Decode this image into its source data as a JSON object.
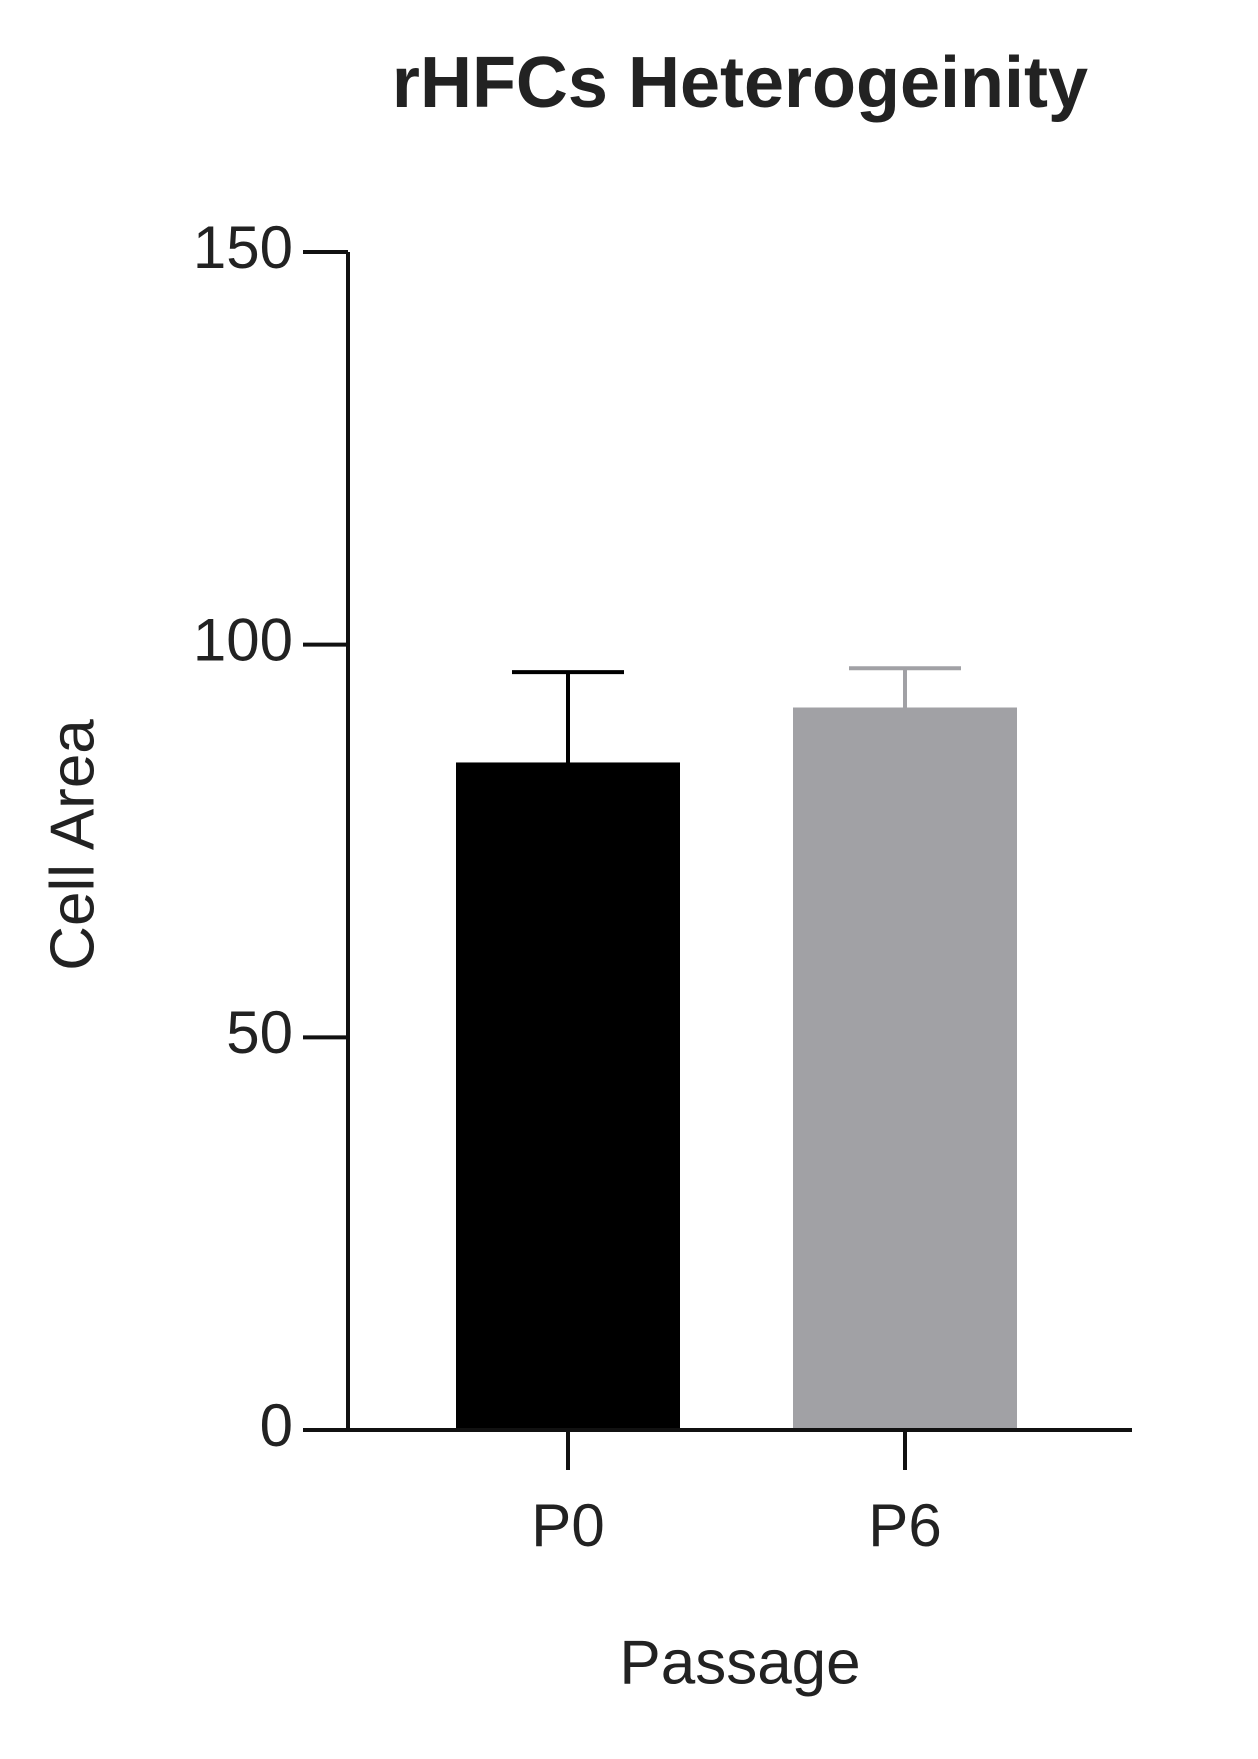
{
  "chart_data": {
    "type": "bar",
    "title": "rHFCs Heterogeinity",
    "x_label": "Passage",
    "y_label": "Cell Area",
    "categories": [
      "P0",
      "P6"
    ],
    "values": [
      85,
      92
    ],
    "errors": [
      11.5,
      5
    ],
    "colors": [
      "#000000",
      "#a1a1a5"
    ],
    "error_colors": [
      "#000000",
      "#a1a1a5"
    ],
    "ylim": [
      0,
      150
    ],
    "yticks": [
      0,
      50,
      100,
      150
    ],
    "grid": false
  }
}
